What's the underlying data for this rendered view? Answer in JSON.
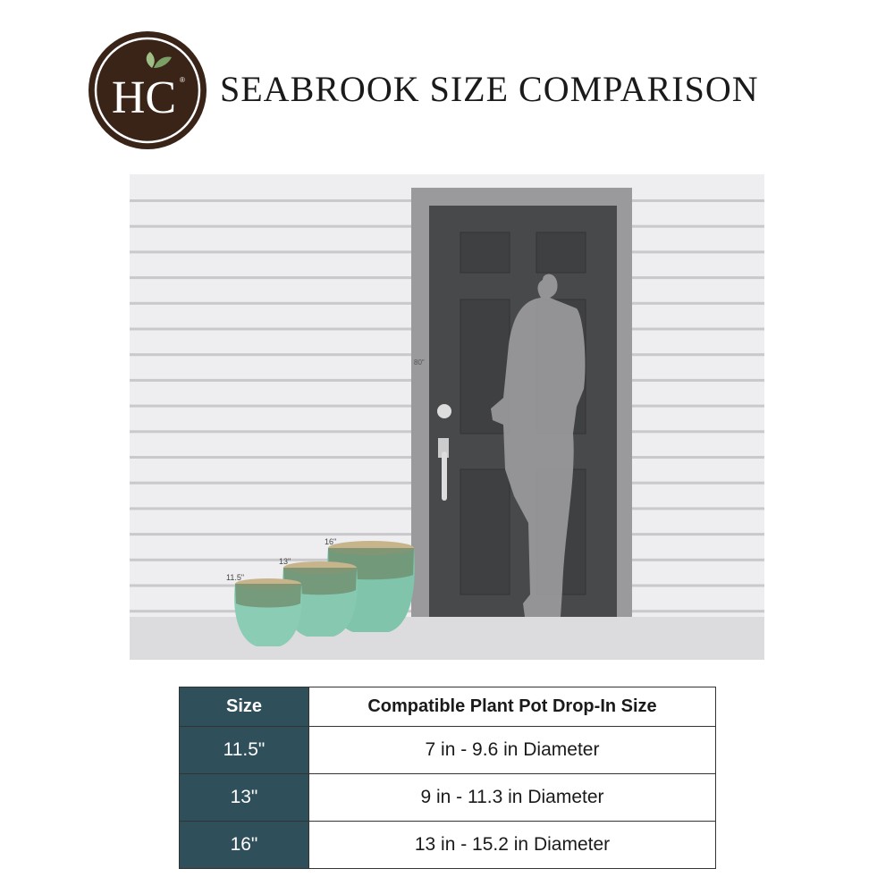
{
  "logo": {
    "text": "HC",
    "mark": "®",
    "colors": {
      "background": "#3a2418",
      "leaf": "#8fb07a"
    }
  },
  "header": {
    "title": "SEABROOK SIZE COMPARISON"
  },
  "scene": {
    "door_height_label": "80\"",
    "pot_labels": [
      "11.5\"",
      "13\"",
      "16\""
    ]
  },
  "table": {
    "headers": [
      "Size",
      "Compatible Plant Pot Drop-In Size"
    ],
    "rows": [
      {
        "size": "11.5\"",
        "drop_in": "7 in - 9.6 in Diameter"
      },
      {
        "size": "13\"",
        "drop_in": "9 in - 11.3 in Diameter"
      },
      {
        "size": "16\"",
        "drop_in": "13 in - 15.2 in Diameter"
      }
    ],
    "accent": "#2f4f5b"
  }
}
